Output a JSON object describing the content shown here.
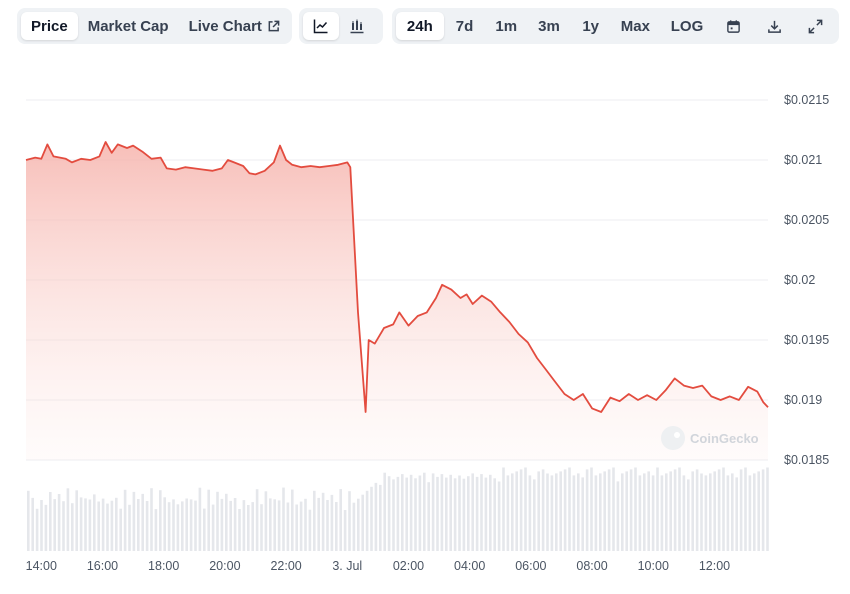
{
  "toolbar": {
    "metric_tabs": [
      {
        "label": "Price",
        "active": true
      },
      {
        "label": "Market Cap",
        "active": false
      },
      {
        "label": "Live Chart",
        "active": false
      }
    ],
    "view_icons": [
      "line-chart-icon",
      "candlestick-chart-icon"
    ],
    "range_tabs": [
      {
        "label": "24h",
        "active": true
      },
      {
        "label": "7d",
        "active": false
      },
      {
        "label": "1m",
        "active": false
      },
      {
        "label": "3m",
        "active": false
      },
      {
        "label": "1y",
        "active": false
      },
      {
        "label": "Max",
        "active": false
      },
      {
        "label": "LOG",
        "active": false
      }
    ],
    "action_icons": [
      "calendar-icon",
      "download-icon",
      "fullscreen-icon"
    ],
    "external_icon": "external-link-icon"
  },
  "watermark": "CoinGecko",
  "colors": {
    "line": "#e34c3f",
    "fill_top": "#f8c7c2",
    "volume": "#e5e7eb",
    "grid": "#eceef1"
  },
  "chart_data": {
    "type": "area",
    "title": "",
    "xlabel": "",
    "ylabel": "",
    "x_ticks": [
      "14:00",
      "16:00",
      "18:00",
      "20:00",
      "22:00",
      "3. Jul",
      "02:00",
      "04:00",
      "06:00",
      "08:00",
      "10:00",
      "12:00"
    ],
    "y_ticks": [
      "$0.0215",
      "$0.021",
      "$0.0205",
      "$0.02",
      "$0.0195",
      "$0.019",
      "$0.0185"
    ],
    "ylim": [
      0.0185,
      0.0215
    ],
    "xlim": [
      13.5,
      37.75
    ],
    "grid": true,
    "legend": "none",
    "series": [
      {
        "values": [
          [
            13.5,
            0.021
          ],
          [
            13.8,
            0.02102
          ],
          [
            14.0,
            0.02101
          ],
          [
            14.2,
            0.02113
          ],
          [
            14.4,
            0.02103
          ],
          [
            14.8,
            0.02101
          ],
          [
            15.0,
            0.02098
          ],
          [
            15.3,
            0.02101
          ],
          [
            15.6,
            0.021
          ],
          [
            15.9,
            0.02103
          ],
          [
            16.1,
            0.02115
          ],
          [
            16.3,
            0.02106
          ],
          [
            16.5,
            0.02113
          ],
          [
            16.8,
            0.0211
          ],
          [
            17.0,
            0.02112
          ],
          [
            17.3,
            0.02107
          ],
          [
            17.6,
            0.02101
          ],
          [
            17.9,
            0.02102
          ],
          [
            18.1,
            0.02093
          ],
          [
            18.4,
            0.02092
          ],
          [
            18.7,
            0.02094
          ],
          [
            19.0,
            0.02093
          ],
          [
            19.3,
            0.02092
          ],
          [
            19.6,
            0.02091
          ],
          [
            19.9,
            0.02093
          ],
          [
            20.1,
            0.021
          ],
          [
            20.3,
            0.02098
          ],
          [
            20.6,
            0.02095
          ],
          [
            20.8,
            0.02089
          ],
          [
            21.0,
            0.02088
          ],
          [
            21.3,
            0.02091
          ],
          [
            21.6,
            0.02098
          ],
          [
            21.8,
            0.02112
          ],
          [
            22.0,
            0.021
          ],
          [
            22.2,
            0.02096
          ],
          [
            22.5,
            0.02094
          ],
          [
            22.8,
            0.02095
          ],
          [
            23.1,
            0.02094
          ],
          [
            23.4,
            0.02095
          ],
          [
            23.7,
            0.02096
          ],
          [
            24.0,
            0.02098
          ],
          [
            24.1,
            0.02094
          ],
          [
            24.35,
            0.01973
          ],
          [
            24.6,
            0.0189
          ],
          [
            24.7,
            0.0195
          ],
          [
            24.9,
            0.01947
          ],
          [
            25.2,
            0.0196
          ],
          [
            25.5,
            0.01963
          ],
          [
            25.7,
            0.01973
          ],
          [
            26.0,
            0.01962
          ],
          [
            26.3,
            0.0197
          ],
          [
            26.6,
            0.01973
          ],
          [
            26.9,
            0.01985
          ],
          [
            27.1,
            0.01996
          ],
          [
            27.4,
            0.01992
          ],
          [
            27.7,
            0.01985
          ],
          [
            27.9,
            0.01988
          ],
          [
            28.1,
            0.0198
          ],
          [
            28.4,
            0.01987
          ],
          [
            28.7,
            0.01982
          ],
          [
            29.0,
            0.01973
          ],
          [
            29.3,
            0.01965
          ],
          [
            29.6,
            0.01955
          ],
          [
            29.9,
            0.01948
          ],
          [
            30.2,
            0.01935
          ],
          [
            30.5,
            0.01925
          ],
          [
            30.8,
            0.01915
          ],
          [
            31.1,
            0.01905
          ],
          [
            31.4,
            0.019
          ],
          [
            31.7,
            0.01905
          ],
          [
            32.0,
            0.01893
          ],
          [
            32.3,
            0.0189
          ],
          [
            32.6,
            0.01902
          ],
          [
            32.9,
            0.01899
          ],
          [
            33.2,
            0.01905
          ],
          [
            33.5,
            0.019
          ],
          [
            33.8,
            0.01904
          ],
          [
            34.1,
            0.019
          ],
          [
            34.4,
            0.01908
          ],
          [
            34.7,
            0.01918
          ],
          [
            35.0,
            0.01912
          ],
          [
            35.3,
            0.0191
          ],
          [
            35.6,
            0.01912
          ],
          [
            35.9,
            0.01903
          ],
          [
            36.2,
            0.019
          ],
          [
            36.5,
            0.01903
          ],
          [
            36.8,
            0.019
          ],
          [
            37.1,
            0.01911
          ],
          [
            37.4,
            0.01907
          ],
          [
            37.6,
            0.01898
          ],
          [
            37.75,
            0.01894
          ]
        ]
      }
    ]
  }
}
